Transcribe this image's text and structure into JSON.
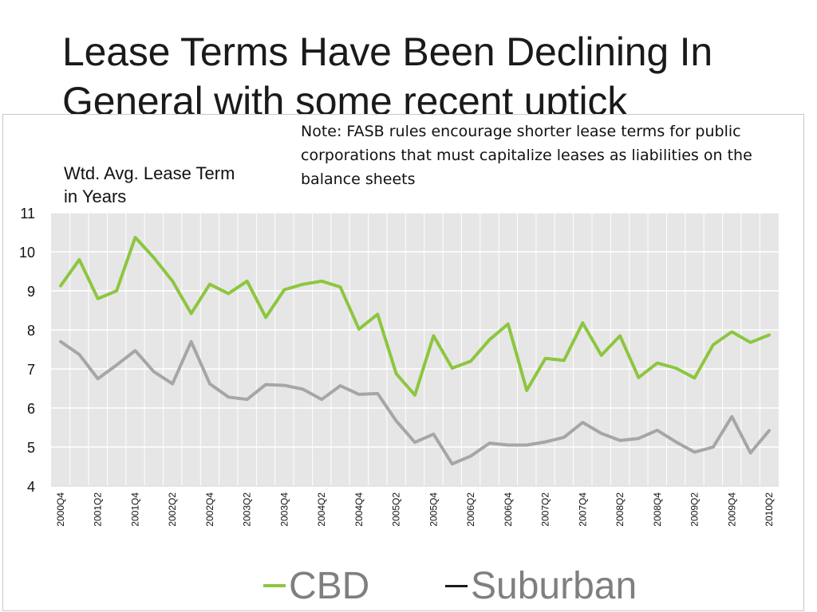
{
  "slide": {
    "title": "Lease Terms Have Been Declining In General with some recent uptick"
  },
  "chart_data": {
    "type": "line",
    "title": "Lease Terms Have Been Declining In General with some recent uptick",
    "note": "Note: FASB rules encourage shorter lease terms for public corporations that must capitalize leases as liabilities on the balance sheets",
    "ylabel": "Wtd. Avg. Lease Term in Years",
    "xlabel": "",
    "ylim": [
      4,
      11
    ],
    "yticks": [
      "11",
      "10",
      "9",
      "8",
      "7",
      "6",
      "5",
      "4"
    ],
    "grid": true,
    "legend_position": "bottom",
    "x": [
      "2000Q4",
      "2001Q1",
      "2001Q2",
      "2001Q3",
      "2001Q4",
      "2002Q1",
      "2002Q2",
      "2002Q3",
      "2002Q4",
      "2003Q1",
      "2003Q2",
      "2003Q3",
      "2003Q4",
      "2004Q1",
      "2004Q2",
      "2004Q3",
      "2004Q4",
      "2005Q1",
      "2005Q2",
      "2005Q3",
      "2005Q4",
      "2006Q1",
      "2006Q2",
      "2006Q3",
      "2006Q4",
      "2007Q1",
      "2007Q2",
      "2007Q3",
      "2007Q4",
      "2008Q1",
      "2008Q2",
      "2008Q3",
      "2008Q4",
      "2009Q1",
      "2009Q2",
      "2009Q3",
      "2009Q4",
      "2010Q1",
      "2010Q2"
    ],
    "tick_labels": [
      "2000Q4",
      "2001Q2",
      "2001Q4",
      "2002Q2",
      "2002Q4",
      "2003Q2",
      "2003Q4",
      "2004Q2",
      "2004Q4",
      "2005Q2",
      "2005Q4",
      "2006Q2",
      "2006Q4",
      "2007Q2",
      "2007Q4",
      "2008Q2",
      "2008Q4",
      "2009Q2",
      "2009Q4",
      "2010Q2"
    ],
    "series": [
      {
        "name": "CBD",
        "color": "#8cc63f",
        "values": [
          9.13,
          9.8,
          8.8,
          9.0,
          10.37,
          9.85,
          9.25,
          8.42,
          9.17,
          8.93,
          9.25,
          8.32,
          9.03,
          9.17,
          9.25,
          9.1,
          8.02,
          8.4,
          6.88,
          6.33,
          7.85,
          7.02,
          7.2,
          7.75,
          8.15,
          6.45,
          7.27,
          7.22,
          8.18,
          7.35,
          7.85,
          6.78,
          7.15,
          7.02,
          6.77,
          7.62,
          7.95,
          7.68,
          7.87
        ]
      },
      {
        "name": "Suburban",
        "color": "#a6a6a6",
        "values": [
          7.7,
          7.37,
          6.75,
          7.1,
          7.47,
          6.93,
          6.62,
          7.7,
          6.62,
          6.28,
          6.22,
          6.6,
          6.58,
          6.48,
          6.22,
          6.57,
          6.35,
          6.37,
          5.67,
          5.12,
          5.33,
          4.57,
          4.77,
          5.1,
          5.05,
          5.05,
          5.13,
          5.25,
          5.63,
          5.35,
          5.17,
          5.22,
          5.43,
          5.13,
          4.87,
          5.0,
          5.78,
          4.85,
          5.42
        ]
      }
    ]
  }
}
